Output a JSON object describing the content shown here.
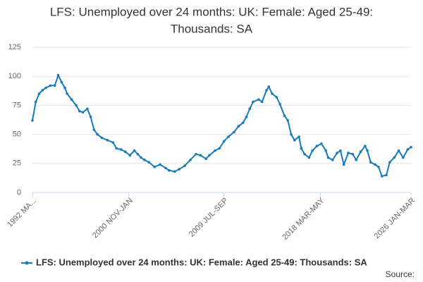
{
  "chart_data": {
    "type": "line",
    "title": [
      "LFS: Unemployed over 24 months: UK: Female: Aged 25-49:",
      "Thousands: SA"
    ],
    "source": "Source:",
    "x": [
      1992.3,
      1992.6,
      1992.9,
      1993.2,
      1993.5,
      1993.9,
      1994.3,
      1994.6,
      1994.9,
      1995.2,
      1995.4,
      1995.8,
      1996.2,
      1996.5,
      1996.8,
      1997.2,
      1997.5,
      1997.8,
      1998.1,
      1998.5,
      1999.0,
      1999.5,
      1999.8,
      2000.2,
      2000.6,
      2001.0,
      2001.4,
      2001.7,
      2002.0,
      2002.3,
      2002.7,
      2003.2,
      2003.7,
      2004.2,
      2004.5,
      2005.0,
      2005.4,
      2005.9,
      2006.4,
      2006.9,
      2007.3,
      2007.8,
      2008.1,
      2008.6,
      2009.0,
      2009.4,
      2009.8,
      2010.3,
      2010.7,
      2011.1,
      2011.4,
      2011.7,
      2012.0,
      2012.5,
      2012.8,
      2013.2,
      2013.4,
      2013.7,
      2014.1,
      2014.4,
      2014.8,
      2015.1,
      2015.4,
      2015.7,
      2016.1,
      2016.3,
      2016.6,
      2017.0,
      2017.3,
      2017.7,
      2018.1,
      2018.5,
      2018.7,
      2019.1,
      2019.5,
      2019.8,
      2020.1,
      2020.5,
      2020.9,
      2021.2,
      2021.6,
      2022.0,
      2022.2,
      2022.5,
      2022.9,
      2023.2,
      2023.5,
      2023.9,
      2024.2,
      2024.6,
      2025.0,
      2025.4,
      2025.8,
      2026.1
    ],
    "series": [
      {
        "name": "LFS: Unemployed over 24 months: UK: Female: Aged 25-49: Thousands: SA",
        "color": "#1a7ab8",
        "values": [
          62,
          78,
          85,
          88,
          90,
          92,
          92,
          101,
          95,
          90,
          85,
          80,
          75,
          70,
          69,
          72,
          65,
          54,
          50,
          47,
          45,
          43,
          38,
          37,
          35,
          32,
          36,
          33,
          30,
          28,
          26,
          22,
          24,
          21,
          19,
          18,
          20,
          23,
          28,
          33,
          32,
          29,
          32,
          36,
          38,
          44,
          48,
          52,
          57,
          60,
          65,
          72,
          78,
          80,
          78,
          88,
          91,
          85,
          82,
          76,
          66,
          62,
          50,
          45,
          48,
          38,
          33,
          30,
          36,
          40,
          42,
          36,
          30,
          28,
          34,
          36,
          24,
          34,
          33,
          28,
          35,
          40,
          36,
          26,
          24,
          22,
          14,
          15,
          26,
          30,
          36,
          30,
          37,
          39
        ]
      }
    ],
    "xlim": [
      1992.3,
      2026.1
    ],
    "xticks": [
      {
        "value": 1992.3,
        "label": "1992 MA..."
      },
      {
        "value": 2000.9,
        "label": "2000 NOV-JAN"
      },
      {
        "value": 2009.4,
        "label": "2009 JUL-SEP"
      },
      {
        "value": 2018.0,
        "label": "2018 MAR-MAY"
      },
      {
        "value": 2026.1,
        "label": "2026 JAN-MAR"
      }
    ],
    "ylim": [
      0,
      125
    ],
    "yticks": [
      0,
      25,
      50,
      75,
      100,
      125
    ],
    "grid": true
  }
}
